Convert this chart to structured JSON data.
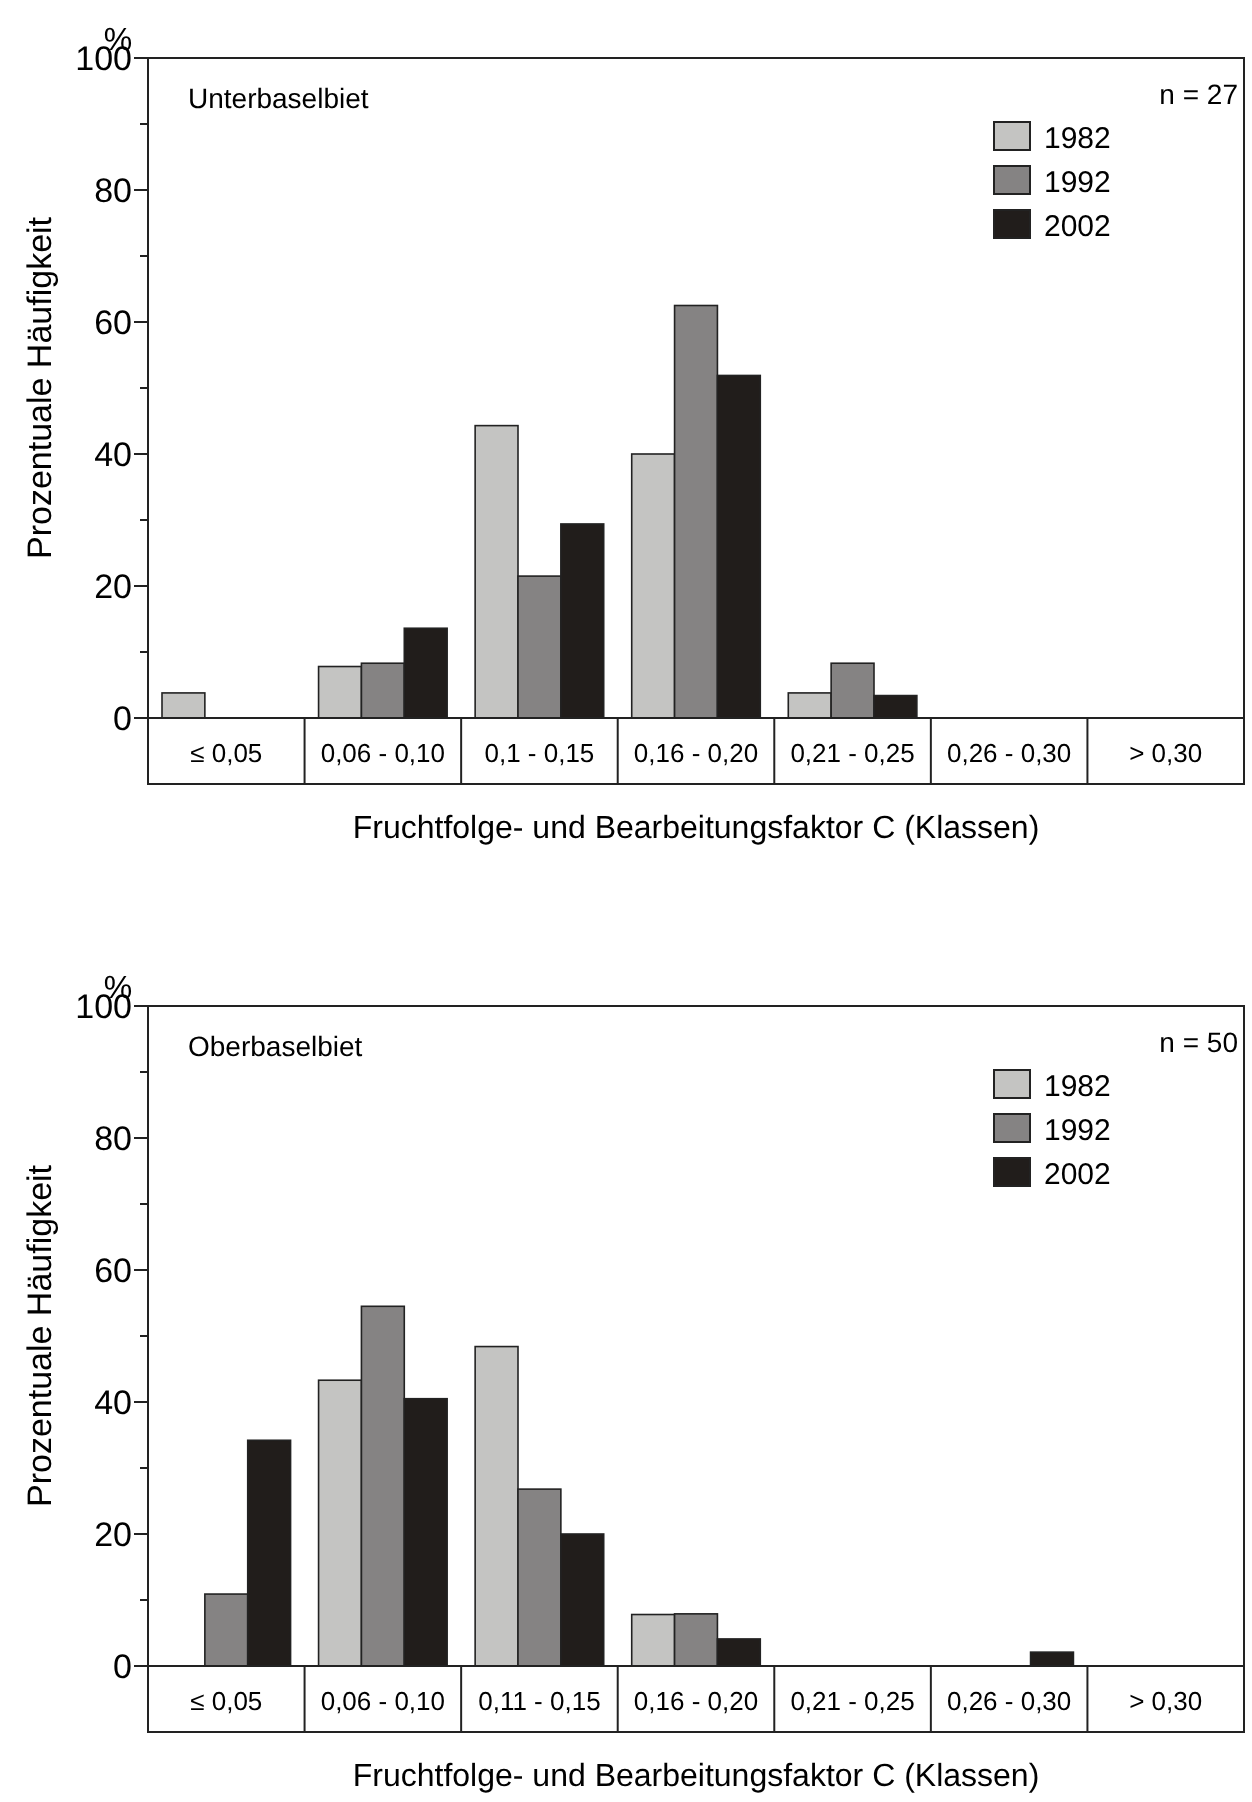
{
  "chart_data": [
    {
      "type": "bar",
      "title": "Unterbaselbiet",
      "ylabel": "Prozentuale Häufigkeit",
      "xlabel": "Fruchtfolge- und Bearbeitungsfaktor C (Klassen)",
      "annotations": [
        "%",
        "n = 27"
      ],
      "categories": [
        "≤ 0,05",
        "0,06 - 0,10",
        "0,1 -  0,15",
        "0,16 - 0,20",
        "0,21 - 0,25",
        "0,26 - 0,30",
        "> 0,30"
      ],
      "series": [
        {
          "name": "1982",
          "color": "#c4c4c2",
          "values": [
            3.8,
            7.8,
            44.3,
            40,
            3.8,
            0,
            0
          ]
        },
        {
          "name": "1992",
          "color": "#858383",
          "values": [
            0,
            8.3,
            21.5,
            62.5,
            8.3,
            0,
            0
          ]
        },
        {
          "name": "2002",
          "color": "#211d1b",
          "values": [
            0,
            13.6,
            29.4,
            51.9,
            3.4,
            0,
            0
          ]
        }
      ],
      "ylim": [
        0,
        100
      ],
      "yticks": [
        0,
        {
          "value": 10,
          "label": null
        },
        20,
        {
          "value": 30,
          "label": null
        },
        40,
        {
          "value": 50,
          "label": null
        },
        60,
        {
          "value": 70,
          "label": null
        },
        80,
        {
          "value": 90,
          "label": null
        },
        100
      ],
      "grid": false,
      "legend": "top right"
    },
    {
      "type": "bar",
      "title": "Oberbaselbiet",
      "ylabel": "Prozentuale Häufigkeit",
      "xlabel": "Fruchtfolge- und Bearbeitungsfaktor C (Klassen)",
      "annotations": [
        "%",
        "n = 50"
      ],
      "categories": [
        "≤ 0,05",
        "0,06 - 0,10",
        "0,11 - 0,15",
        "0,16 - 0,20",
        "0,21 - 0,25",
        "0,26 - 0,30",
        "> 0,30"
      ],
      "series": [
        {
          "name": "1982",
          "color": "#c4c4c2",
          "values": [
            0,
            43.3,
            48.4,
            7.8,
            0,
            0,
            0
          ]
        },
        {
          "name": "1992",
          "color": "#858383",
          "values": [
            10.9,
            54.5,
            26.8,
            7.9,
            0,
            0,
            0
          ]
        },
        {
          "name": "2002",
          "color": "#211d1b",
          "values": [
            34.2,
            40.5,
            20,
            4.1,
            0,
            2.1,
            0
          ]
        }
      ],
      "ylim": [
        0,
        100
      ],
      "yticks": [
        0,
        {
          "value": 10,
          "label": null
        },
        20,
        {
          "value": 30,
          "label": null
        },
        40,
        {
          "value": 50,
          "label": null
        },
        60,
        {
          "value": 70,
          "label": null
        },
        80,
        {
          "value": 90,
          "label": null
        },
        100
      ],
      "grid": false,
      "legend": "top right"
    }
  ]
}
